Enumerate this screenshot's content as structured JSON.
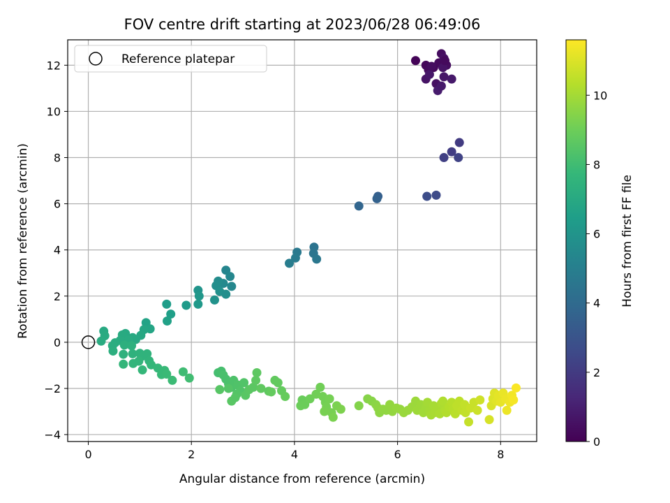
{
  "chart_data": {
    "type": "scatter",
    "title": "FOV centre drift starting at 2023/06/28 06:49:06",
    "xlabel": "Angular distance from reference (arcmin)",
    "ylabel": "Rotation from reference (arcmin)",
    "xlim": [
      -0.4,
      8.7
    ],
    "ylim": [
      -4.3,
      13.1
    ],
    "xticks": [
      "0",
      "2",
      "4",
      "6",
      "8"
    ],
    "yticks": [
      "−4",
      "−2",
      "0",
      "2",
      "4",
      "6",
      "8",
      "10",
      "12"
    ],
    "grid": true,
    "legend": {
      "placement": "top-left",
      "entries": [
        "Reference platepar"
      ]
    },
    "reference_point": {
      "x": 0,
      "y": 0
    },
    "colorbar": {
      "label": "Hours from first FF file",
      "colormap": "viridis",
      "range": [
        0,
        11.6
      ],
      "ticks": [
        "0",
        "2",
        "4",
        "6",
        "8",
        "10"
      ]
    },
    "points": [
      {
        "x": 6.35,
        "y": 12.2,
        "h": 0.1
      },
      {
        "x": 6.55,
        "y": 12.0,
        "h": 0.2
      },
      {
        "x": 6.6,
        "y": 11.8,
        "h": 0.3
      },
      {
        "x": 6.7,
        "y": 11.9,
        "h": 0.2
      },
      {
        "x": 6.8,
        "y": 12.1,
        "h": 0.3
      },
      {
        "x": 6.85,
        "y": 12.5,
        "h": 0.4
      },
      {
        "x": 6.9,
        "y": 12.3,
        "h": 0.5
      },
      {
        "x": 6.95,
        "y": 12.0,
        "h": 0.4
      },
      {
        "x": 6.88,
        "y": 11.9,
        "h": 0.6
      },
      {
        "x": 6.75,
        "y": 11.2,
        "h": 0.5
      },
      {
        "x": 6.9,
        "y": 11.5,
        "h": 0.7
      },
      {
        "x": 7.05,
        "y": 11.4,
        "h": 0.8
      },
      {
        "x": 6.55,
        "y": 11.4,
        "h": 0.6
      },
      {
        "x": 6.78,
        "y": 10.9,
        "h": 0.9
      },
      {
        "x": 6.85,
        "y": 11.1,
        "h": 0.8
      },
      {
        "x": 6.62,
        "y": 11.6,
        "h": 0.7
      },
      {
        "x": 6.92,
        "y": 12.2,
        "h": 0.3
      },
      {
        "x": 6.66,
        "y": 11.95,
        "h": 0.4
      },
      {
        "x": 7.2,
        "y": 8.65,
        "h": 2.0
      },
      {
        "x": 7.05,
        "y": 8.25,
        "h": 2.1
      },
      {
        "x": 6.9,
        "y": 8.0,
        "h": 2.2
      },
      {
        "x": 7.18,
        "y": 8.0,
        "h": 2.3
      },
      {
        "x": 6.57,
        "y": 6.32,
        "h": 2.7
      },
      {
        "x": 6.75,
        "y": 6.37,
        "h": 2.6
      },
      {
        "x": 5.62,
        "y": 6.32,
        "h": 3.5
      },
      {
        "x": 5.6,
        "y": 6.22,
        "h": 3.6
      },
      {
        "x": 5.25,
        "y": 5.9,
        "h": 3.8
      },
      {
        "x": 4.38,
        "y": 4.12,
        "h": 4.4
      },
      {
        "x": 4.37,
        "y": 3.85,
        "h": 4.5
      },
      {
        "x": 4.43,
        "y": 3.6,
        "h": 4.6
      },
      {
        "x": 4.05,
        "y": 3.9,
        "h": 4.7
      },
      {
        "x": 4.02,
        "y": 3.65,
        "h": 4.8
      },
      {
        "x": 3.9,
        "y": 3.42,
        "h": 4.9
      },
      {
        "x": 2.67,
        "y": 3.12,
        "h": 5.3
      },
      {
        "x": 2.75,
        "y": 2.85,
        "h": 5.4
      },
      {
        "x": 2.62,
        "y": 2.55,
        "h": 5.5
      },
      {
        "x": 2.78,
        "y": 2.42,
        "h": 5.4
      },
      {
        "x": 2.52,
        "y": 2.65,
        "h": 5.6
      },
      {
        "x": 2.48,
        "y": 2.45,
        "h": 5.7
      },
      {
        "x": 2.55,
        "y": 2.2,
        "h": 5.8
      },
      {
        "x": 2.67,
        "y": 2.08,
        "h": 5.7
      },
      {
        "x": 2.45,
        "y": 1.83,
        "h": 5.9
      },
      {
        "x": 2.13,
        "y": 2.25,
        "h": 6.0
      },
      {
        "x": 2.15,
        "y": 2.0,
        "h": 6.1
      },
      {
        "x": 2.13,
        "y": 1.65,
        "h": 6.2
      },
      {
        "x": 1.9,
        "y": 1.6,
        "h": 6.3
      },
      {
        "x": 1.52,
        "y": 1.65,
        "h": 6.4
      },
      {
        "x": 1.6,
        "y": 1.22,
        "h": 6.5
      },
      {
        "x": 1.53,
        "y": 0.92,
        "h": 6.6
      },
      {
        "x": 1.12,
        "y": 0.85,
        "h": 6.7
      },
      {
        "x": 1.2,
        "y": 0.58,
        "h": 6.8
      },
      {
        "x": 1.08,
        "y": 0.55,
        "h": 6.85
      },
      {
        "x": 1.02,
        "y": 0.3,
        "h": 6.9
      },
      {
        "x": 0.92,
        "y": 0.12,
        "h": 6.95
      },
      {
        "x": 0.86,
        "y": 0.2,
        "h": 7.0
      },
      {
        "x": 0.72,
        "y": 0.38,
        "h": 7.0
      },
      {
        "x": 0.66,
        "y": 0.32,
        "h": 7.05
      },
      {
        "x": 0.78,
        "y": 0.1,
        "h": 7.1
      },
      {
        "x": 0.62,
        "y": 0.08,
        "h": 7.1
      },
      {
        "x": 0.52,
        "y": -0.02,
        "h": 7.15
      },
      {
        "x": 0.47,
        "y": -0.15,
        "h": 7.2
      },
      {
        "x": 0.48,
        "y": -0.38,
        "h": 7.25
      },
      {
        "x": 0.3,
        "y": 0.48,
        "h": 7.0
      },
      {
        "x": 0.32,
        "y": 0.28,
        "h": 7.05
      },
      {
        "x": 0.25,
        "y": 0.05,
        "h": 7.1
      },
      {
        "x": 0.7,
        "y": -0.12,
        "h": 7.3
      },
      {
        "x": 0.84,
        "y": -0.15,
        "h": 7.35
      },
      {
        "x": 0.86,
        "y": -0.5,
        "h": 7.4
      },
      {
        "x": 0.68,
        "y": -0.52,
        "h": 7.4
      },
      {
        "x": 1.0,
        "y": -0.48,
        "h": 7.45
      },
      {
        "x": 1.05,
        "y": -0.6,
        "h": 7.5
      },
      {
        "x": 1.14,
        "y": -0.5,
        "h": 7.5
      },
      {
        "x": 1.18,
        "y": -0.8,
        "h": 7.55
      },
      {
        "x": 0.98,
        "y": -0.82,
        "h": 7.6
      },
      {
        "x": 0.87,
        "y": -0.92,
        "h": 7.6
      },
      {
        "x": 0.68,
        "y": -0.95,
        "h": 7.65
      },
      {
        "x": 1.05,
        "y": -1.2,
        "h": 7.7
      },
      {
        "x": 1.22,
        "y": -0.98,
        "h": 7.7
      },
      {
        "x": 1.35,
        "y": -1.12,
        "h": 7.75
      },
      {
        "x": 1.42,
        "y": -1.4,
        "h": 7.8
      },
      {
        "x": 1.48,
        "y": -1.22,
        "h": 7.8
      },
      {
        "x": 1.52,
        "y": -1.38,
        "h": 7.85
      },
      {
        "x": 1.63,
        "y": -1.65,
        "h": 7.9
      },
      {
        "x": 1.84,
        "y": -1.28,
        "h": 7.95
      },
      {
        "x": 1.96,
        "y": -1.55,
        "h": 8.0
      },
      {
        "x": 2.52,
        "y": -1.32,
        "h": 8.1
      },
      {
        "x": 2.58,
        "y": -1.25,
        "h": 8.15
      },
      {
        "x": 2.62,
        "y": -1.42,
        "h": 8.2
      },
      {
        "x": 2.67,
        "y": -1.6,
        "h": 8.2
      },
      {
        "x": 2.72,
        "y": -1.8,
        "h": 8.25
      },
      {
        "x": 2.78,
        "y": -1.95,
        "h": 8.3
      },
      {
        "x": 2.82,
        "y": -1.65,
        "h": 8.3
      },
      {
        "x": 2.9,
        "y": -1.85,
        "h": 8.35
      },
      {
        "x": 2.95,
        "y": -2.1,
        "h": 8.4
      },
      {
        "x": 3.02,
        "y": -1.75,
        "h": 8.4
      },
      {
        "x": 2.88,
        "y": -2.25,
        "h": 8.45
      },
      {
        "x": 2.72,
        "y": -2.0,
        "h": 8.45
      },
      {
        "x": 2.55,
        "y": -2.05,
        "h": 8.5
      },
      {
        "x": 2.78,
        "y": -2.55,
        "h": 8.55
      },
      {
        "x": 2.85,
        "y": -2.4,
        "h": 8.5
      },
      {
        "x": 3.05,
        "y": -2.3,
        "h": 8.55
      },
      {
        "x": 3.12,
        "y": -2.05,
        "h": 8.6
      },
      {
        "x": 3.2,
        "y": -1.95,
        "h": 8.6
      },
      {
        "x": 3.25,
        "y": -1.65,
        "h": 8.65
      },
      {
        "x": 3.27,
        "y": -1.32,
        "h": 8.65
      },
      {
        "x": 3.35,
        "y": -2.0,
        "h": 8.7
      },
      {
        "x": 3.5,
        "y": -2.12,
        "h": 8.7
      },
      {
        "x": 3.62,
        "y": -1.65,
        "h": 8.75
      },
      {
        "x": 3.68,
        "y": -1.75,
        "h": 8.75
      },
      {
        "x": 3.75,
        "y": -2.1,
        "h": 8.8
      },
      {
        "x": 3.82,
        "y": -2.35,
        "h": 8.85
      },
      {
        "x": 3.55,
        "y": -2.15,
        "h": 8.8
      },
      {
        "x": 4.15,
        "y": -2.5,
        "h": 8.9
      },
      {
        "x": 4.2,
        "y": -2.7,
        "h": 8.95
      },
      {
        "x": 4.12,
        "y": -2.75,
        "h": 8.95
      },
      {
        "x": 4.3,
        "y": -2.45,
        "h": 9.0
      },
      {
        "x": 4.42,
        "y": -2.25,
        "h": 9.05
      },
      {
        "x": 4.5,
        "y": -1.95,
        "h": 9.05
      },
      {
        "x": 4.55,
        "y": -2.35,
        "h": 9.1
      },
      {
        "x": 4.6,
        "y": -2.6,
        "h": 9.1
      },
      {
        "x": 4.62,
        "y": -2.8,
        "h": 9.15
      },
      {
        "x": 4.68,
        "y": -2.45,
        "h": 9.15
      },
      {
        "x": 4.72,
        "y": -3.05,
        "h": 9.2
      },
      {
        "x": 4.58,
        "y": -3.0,
        "h": 9.2
      },
      {
        "x": 4.75,
        "y": -3.25,
        "h": 9.25
      },
      {
        "x": 4.82,
        "y": -2.75,
        "h": 9.25
      },
      {
        "x": 4.9,
        "y": -2.9,
        "h": 9.3
      },
      {
        "x": 5.25,
        "y": -2.75,
        "h": 9.4
      },
      {
        "x": 5.42,
        "y": -2.45,
        "h": 9.45
      },
      {
        "x": 5.5,
        "y": -2.55,
        "h": 9.5
      },
      {
        "x": 5.58,
        "y": -2.7,
        "h": 9.55
      },
      {
        "x": 5.62,
        "y": -2.85,
        "h": 9.6
      },
      {
        "x": 5.65,
        "y": -3.05,
        "h": 9.6
      },
      {
        "x": 5.72,
        "y": -2.9,
        "h": 9.65
      },
      {
        "x": 5.78,
        "y": -2.95,
        "h": 9.65
      },
      {
        "x": 5.85,
        "y": -2.7,
        "h": 9.7
      },
      {
        "x": 5.9,
        "y": -3.0,
        "h": 9.7
      },
      {
        "x": 5.98,
        "y": -2.85,
        "h": 9.75
      },
      {
        "x": 6.05,
        "y": -2.9,
        "h": 9.75
      },
      {
        "x": 6.12,
        "y": -3.05,
        "h": 9.8
      },
      {
        "x": 6.2,
        "y": -2.95,
        "h": 9.8
      },
      {
        "x": 6.28,
        "y": -2.8,
        "h": 9.85
      },
      {
        "x": 6.35,
        "y": -2.55,
        "h": 9.85
      },
      {
        "x": 6.38,
        "y": -2.95,
        "h": 9.9
      },
      {
        "x": 6.45,
        "y": -2.7,
        "h": 9.9
      },
      {
        "x": 6.5,
        "y": -3.05,
        "h": 9.95
      },
      {
        "x": 6.55,
        "y": -2.85,
        "h": 9.95
      },
      {
        "x": 6.58,
        "y": -2.6,
        "h": 10.0
      },
      {
        "x": 6.62,
        "y": -3.0,
        "h": 10.0
      },
      {
        "x": 6.65,
        "y": -3.15,
        "h": 10.05
      },
      {
        "x": 6.7,
        "y": -2.75,
        "h": 10.05
      },
      {
        "x": 6.72,
        "y": -3.05,
        "h": 10.1
      },
      {
        "x": 6.78,
        "y": -2.9,
        "h": 10.1
      },
      {
        "x": 6.82,
        "y": -3.1,
        "h": 10.15
      },
      {
        "x": 6.85,
        "y": -2.65,
        "h": 10.15
      },
      {
        "x": 6.88,
        "y": -2.55,
        "h": 10.2
      },
      {
        "x": 6.92,
        "y": -2.95,
        "h": 10.2
      },
      {
        "x": 6.95,
        "y": -3.05,
        "h": 10.25
      },
      {
        "x": 7.0,
        "y": -2.8,
        "h": 10.3
      },
      {
        "x": 7.05,
        "y": -2.6,
        "h": 10.35
      },
      {
        "x": 7.08,
        "y": -2.9,
        "h": 10.35
      },
      {
        "x": 7.12,
        "y": -3.1,
        "h": 10.4
      },
      {
        "x": 7.15,
        "y": -2.75,
        "h": 10.45
      },
      {
        "x": 7.2,
        "y": -2.55,
        "h": 10.45
      },
      {
        "x": 7.25,
        "y": -2.95,
        "h": 10.5
      },
      {
        "x": 7.3,
        "y": -2.7,
        "h": 10.55
      },
      {
        "x": 7.32,
        "y": -3.05,
        "h": 10.55
      },
      {
        "x": 7.38,
        "y": -3.45,
        "h": 10.6
      },
      {
        "x": 7.42,
        "y": -2.85,
        "h": 10.65
      },
      {
        "x": 7.48,
        "y": -2.6,
        "h": 10.65
      },
      {
        "x": 7.55,
        "y": -2.95,
        "h": 10.7
      },
      {
        "x": 7.6,
        "y": -2.5,
        "h": 10.75
      },
      {
        "x": 7.78,
        "y": -3.35,
        "h": 10.9
      },
      {
        "x": 7.82,
        "y": -2.75,
        "h": 10.95
      },
      {
        "x": 7.85,
        "y": -2.45,
        "h": 11.0
      },
      {
        "x": 7.88,
        "y": -2.2,
        "h": 11.05
      },
      {
        "x": 7.92,
        "y": -2.55,
        "h": 11.1
      },
      {
        "x": 7.96,
        "y": -2.3,
        "h": 11.15
      },
      {
        "x": 8.0,
        "y": -2.6,
        "h": 11.2
      },
      {
        "x": 8.05,
        "y": -2.2,
        "h": 11.25
      },
      {
        "x": 8.1,
        "y": -2.45,
        "h": 11.3
      },
      {
        "x": 8.12,
        "y": -2.95,
        "h": 11.3
      },
      {
        "x": 8.18,
        "y": -2.6,
        "h": 11.35
      },
      {
        "x": 8.22,
        "y": -2.3,
        "h": 11.4
      },
      {
        "x": 8.25,
        "y": -2.5,
        "h": 11.45
      },
      {
        "x": 8.3,
        "y": -1.98,
        "h": 11.55
      }
    ]
  }
}
